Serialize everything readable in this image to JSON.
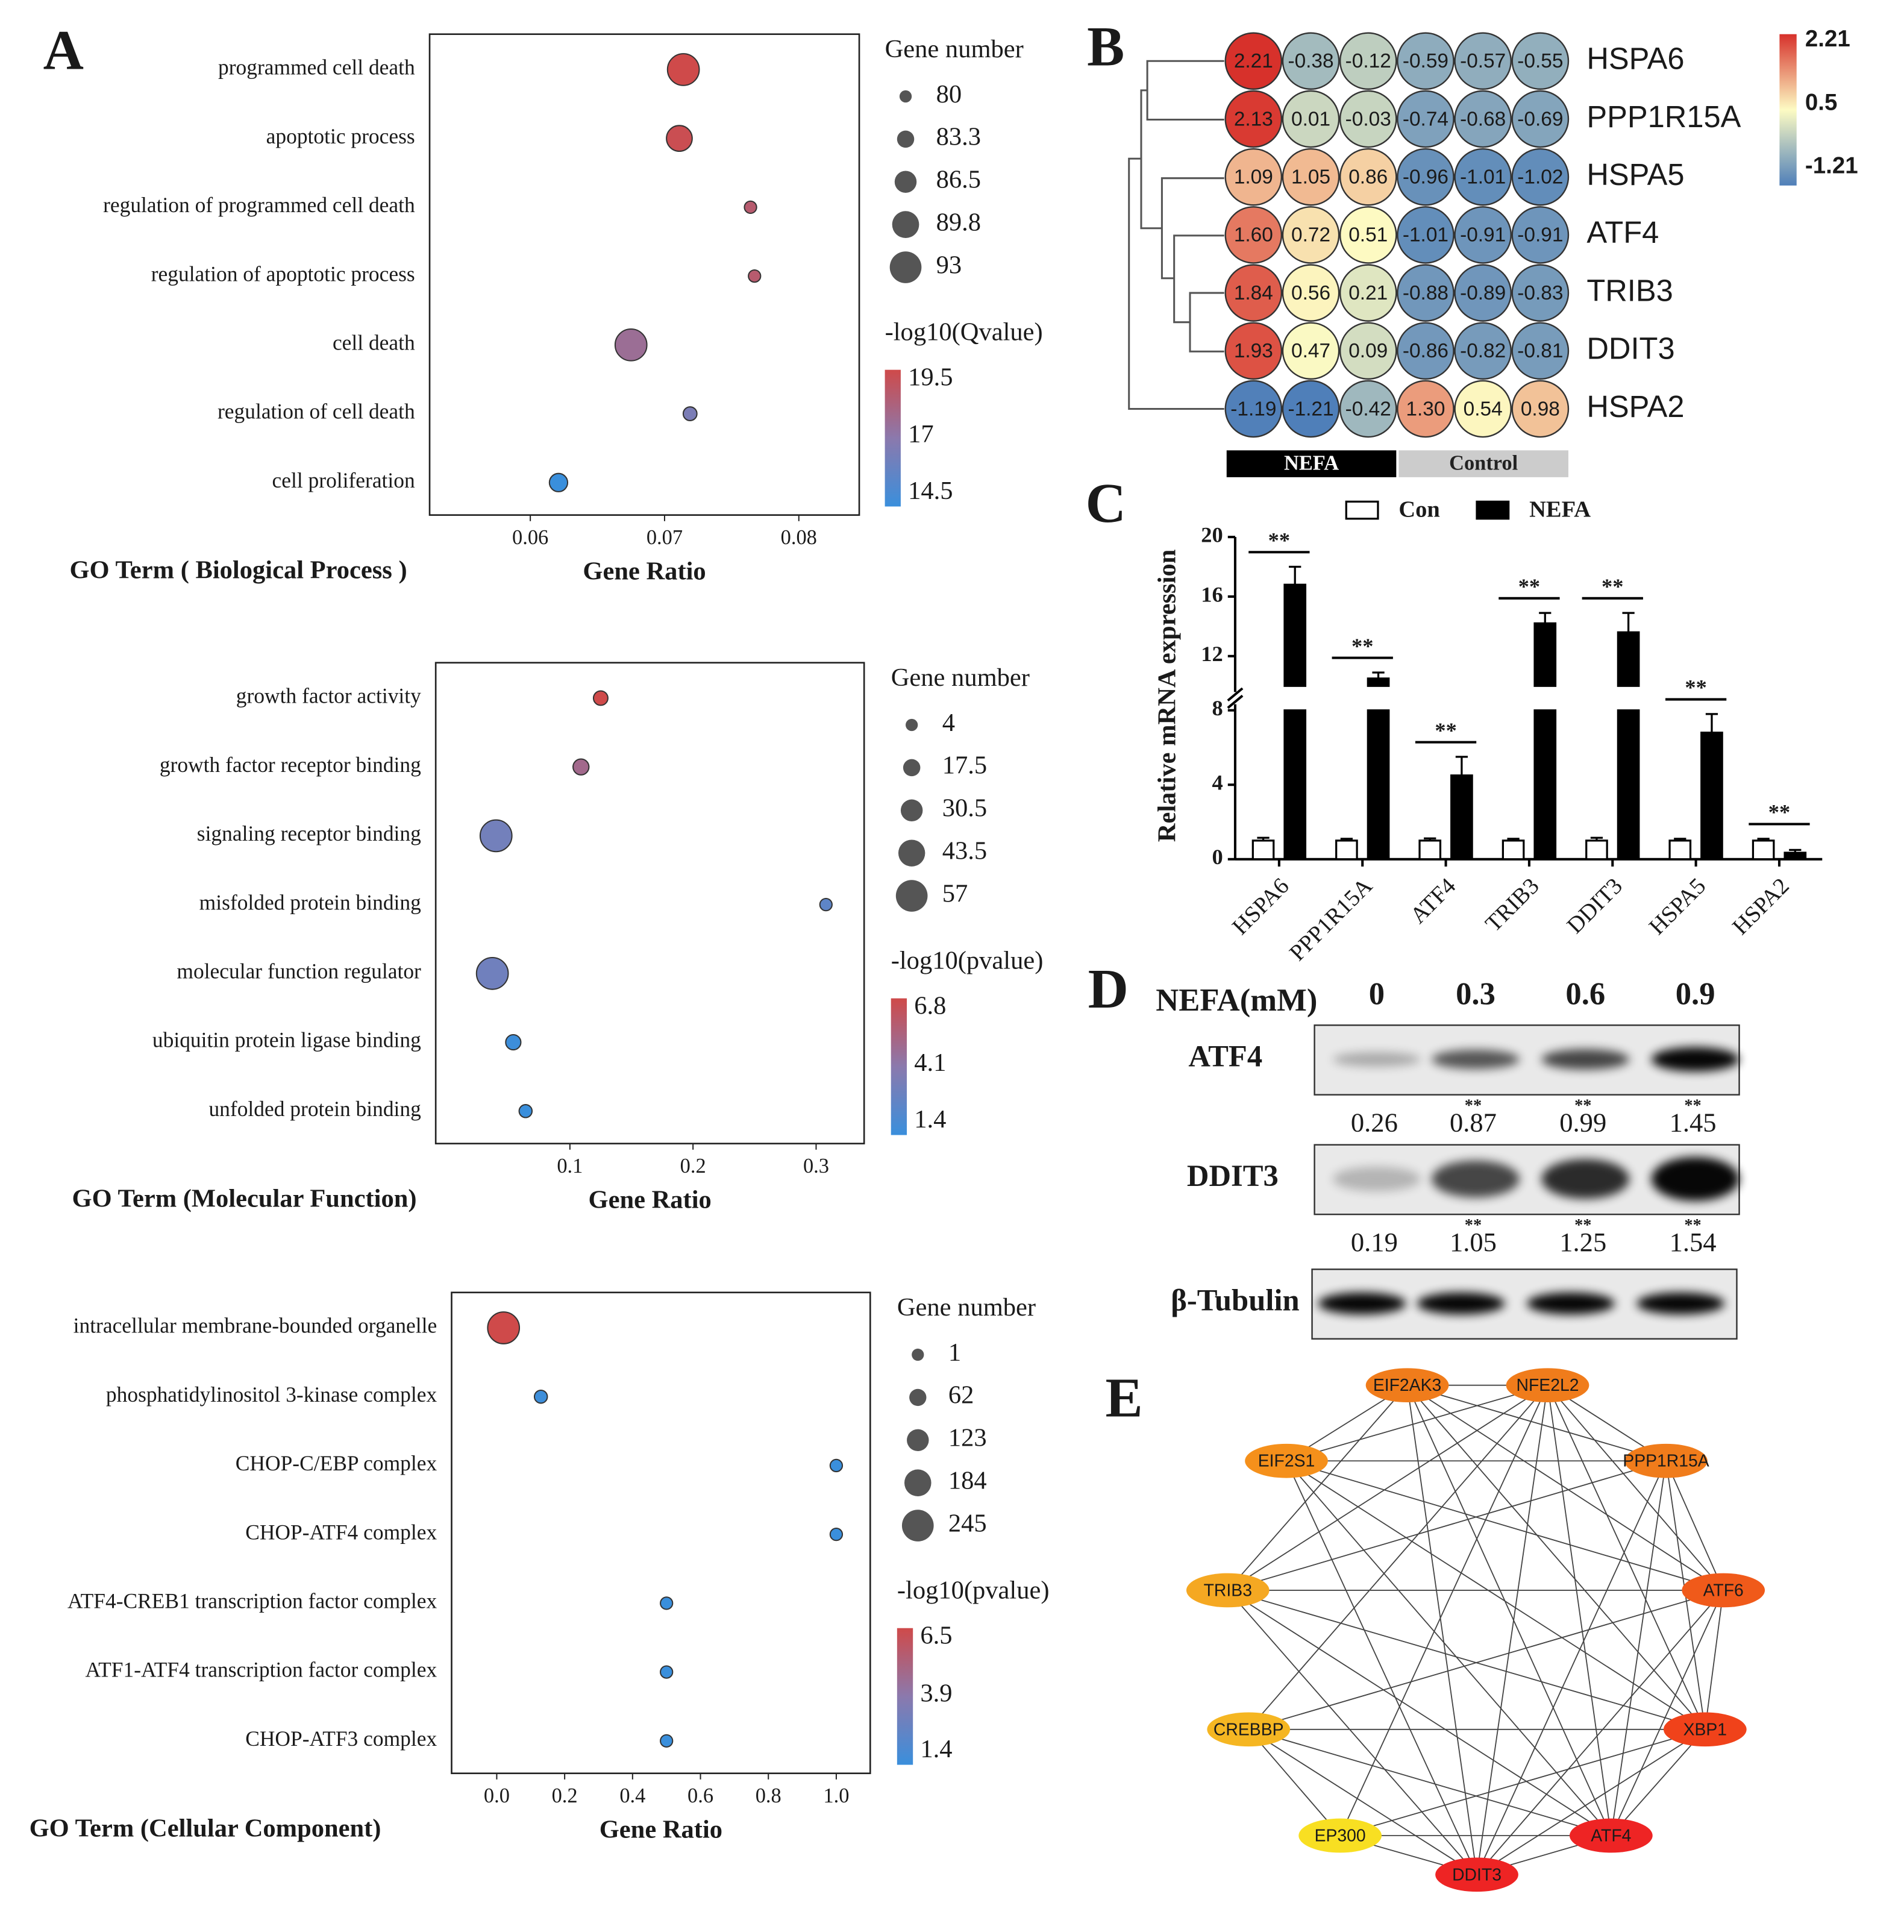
{
  "panel_labels": [
    "A",
    "B",
    "C",
    "D",
    "E"
  ],
  "chart_data": [
    {
      "type": "bubble",
      "title": "GO Term ( Biological Process )",
      "x_label": "Gene Ratio",
      "categories": [
        "programmed cell death",
        "apoptotic process",
        "regulation of programmed cell death",
        "regulation of apoptotic process",
        "cell death",
        "regulation of cell death",
        "cell proliferation"
      ],
      "x": [
        0.0714,
        0.0711,
        0.0764,
        0.0767,
        0.0675,
        0.0719,
        0.0621
      ],
      "size": [
        93,
        89,
        80,
        80,
        93,
        81,
        84
      ],
      "color_values": [
        19.5,
        19.3,
        18.6,
        18.6,
        17.6,
        16.5,
        14.5
      ],
      "xlim": [
        0.0525,
        0.0845
      ],
      "xticks": [
        0.06,
        0.07,
        0.08
      ],
      "size_label": "Gene number",
      "size_legend": [
        80,
        83.3,
        86.5,
        89.8,
        93
      ],
      "color_label": "-log10(Qvalue)",
      "color_ticks": [
        19.5,
        17,
        14.5
      ],
      "colormap": [
        "#3a8fdc",
        "#8b79ad",
        "#cf4a4a"
      ]
    },
    {
      "type": "bubble",
      "title": "GO Term (Molecular Function)",
      "x_label": "Gene Ratio",
      "categories": [
        "growth factor activity",
        "growth factor receptor binding",
        "signaling receptor binding",
        "misfolded protein binding",
        "molecular function regulator",
        "ubiquitin protein ligase binding",
        "unfolded protein binding"
      ],
      "x": [
        0.125,
        0.109,
        0.04,
        0.308,
        0.037,
        0.054,
        0.064
      ],
      "size": [
        10,
        14,
        57,
        4,
        57,
        12,
        6
      ],
      "color_values": [
        6.8,
        5.0,
        3.3,
        2.6,
        3.2,
        1.5,
        1.4
      ],
      "xlim": [
        -0.009,
        0.339
      ],
      "xticks": [
        0.1,
        0.2,
        0.3
      ],
      "size_label": "Gene number",
      "size_legend": [
        4,
        17.5,
        30.5,
        43.5,
        57
      ],
      "color_label": "-log10(pvalue)",
      "color_ticks": [
        6.8,
        4.1,
        1.4
      ],
      "colormap": [
        "#3a8fdc",
        "#8b79ad",
        "#cf4a4a"
      ]
    },
    {
      "type": "bubble",
      "title": "GO Term (Cellular Component)",
      "x_label": "Gene Ratio",
      "categories": [
        "intracellular membrane-bounded organelle",
        "phosphatidylinositol 3-kinase complex",
        "CHOP-C/EBP complex",
        "CHOP-ATF4 complex",
        "ATF4-CREB1 transcription factor complex",
        "ATF1-ATF4 transcription factor complex",
        "CHOP-ATF3 complex"
      ],
      "x": [
        0.02,
        0.13,
        1,
        1,
        0.5,
        0.5,
        0.5
      ],
      "size": [
        245,
        10,
        1,
        1,
        1,
        1,
        1
      ],
      "color_values": [
        6.5,
        1.5,
        1.4,
        1.4,
        1.4,
        1.4,
        1.4
      ],
      "xlim": [
        -0.133,
        1.1
      ],
      "xticks": [
        {
          "value": 0,
          "label": "0.0"
        },
        0.2,
        0.4,
        0.6,
        0.8,
        {
          "value": 1,
          "label": "1.0"
        }
      ],
      "size_label": "Gene number",
      "size_legend": [
        1,
        62,
        123,
        184,
        245
      ],
      "color_label": "-log10(pvalue)",
      "color_ticks": [
        6.5,
        3.9,
        1.4
      ],
      "colormap": [
        "#3a8fdc",
        "#8b79ad",
        "#cf4a4a"
      ]
    },
    {
      "type": "heatmap",
      "rows": [
        "HSPA6",
        "PPP1R15A",
        "HSPA5",
        "ATF4",
        "TRIB3",
        "DDIT3",
        "HSPA2"
      ],
      "groups": [
        "NEFA",
        "Control"
      ],
      "group_colors": [
        "#000000",
        "#cccccc"
      ],
      "values": [
        [
          2.21,
          -0.38,
          -0.12,
          -0.59,
          -0.57,
          -0.55
        ],
        [
          2.13,
          0.01,
          -0.03,
          -0.74,
          -0.68,
          -0.69
        ],
        [
          1.09,
          1.05,
          0.86,
          -0.96,
          -1.01,
          -1.02
        ],
        [
          1.6,
          0.72,
          0.51,
          -1.01,
          -0.91,
          -0.91
        ],
        [
          1.84,
          0.56,
          0.21,
          -0.88,
          -0.89,
          -0.83
        ],
        [
          1.93,
          0.47,
          0.09,
          -0.86,
          -0.82,
          -0.81
        ],
        [
          -1.19,
          -1.21,
          -0.42,
          1.3,
          0.54,
          0.98
        ]
      ],
      "value_labels": [
        [
          "2.21",
          "-0.38",
          "-0.12",
          "-0.59",
          "-0.57",
          "-0.55"
        ],
        [
          "2.13",
          "0.01",
          "-0.03",
          "-0.74",
          "-0.68",
          "-0.69"
        ],
        [
          "1.09",
          "1.05",
          "0.86",
          "-0.96",
          "-1.01",
          "-1.02"
        ],
        [
          "1.60",
          "0.72",
          "0.51",
          "-1.01",
          "-0.91",
          "-0.91"
        ],
        [
          "1.84",
          "0.56",
          "0.21",
          "-0.88",
          "-0.89",
          "-0.83"
        ],
        [
          "1.93",
          "0.47",
          "0.09",
          "-0.86",
          "-0.82",
          "-0.81"
        ],
        [
          "-1.19",
          "-1.21",
          "-0.42",
          "1.30",
          "0.54",
          "0.98"
        ]
      ],
      "color_ticks": [
        2.21,
        0.5,
        -1.21
      ],
      "colormap": [
        "#4f7fb9",
        "#fdfbc3",
        "#d7312b"
      ]
    },
    {
      "type": "bar",
      "y_label": "Relative mRNA expression",
      "categories": [
        "HSPA6",
        "PPP1R15A",
        "ATF4",
        "TRIB3",
        "DDIT3",
        "HSPA5",
        "HSPA2"
      ],
      "series": [
        {
          "name": "Con",
          "color": "#ffffff",
          "values": [
            1.0,
            1.0,
            1.0,
            1.0,
            1.0,
            1.0,
            1.0
          ],
          "errors": [
            0.15,
            0.1,
            0.12,
            0.1,
            0.15,
            0.1,
            0.1
          ]
        },
        {
          "name": "NEFA",
          "color": "#000000",
          "values": [
            16.8,
            10.5,
            4.5,
            14.2,
            13.6,
            6.8,
            0.35
          ],
          "errors": [
            1.2,
            0.4,
            1.0,
            0.7,
            1.3,
            1.0,
            0.15
          ]
        }
      ],
      "significance": [
        "**",
        "**",
        "**",
        "**",
        "**",
        "**",
        "**"
      ],
      "ylim": [
        0,
        20
      ],
      "yticks": [
        0,
        4,
        8,
        12,
        16,
        20
      ],
      "ybreak": [
        8,
        10
      ]
    }
  ],
  "blot": {
    "dose_label": "NEFA(mM)",
    "doses": [
      0,
      0.3,
      0.6,
      0.9
    ],
    "proteins": [
      {
        "name": "ATF4",
        "values": [
          0.26,
          0.87,
          0.99,
          1.45
        ],
        "marks": [
          null,
          "**",
          "**",
          "**"
        ]
      },
      {
        "name": "DDIT3",
        "values": [
          0.19,
          1.05,
          1.25,
          1.54
        ],
        "marks": [
          null,
          "**",
          "**",
          "**"
        ]
      },
      {
        "name": "β-Tubulin"
      }
    ]
  },
  "network": {
    "nodes": [
      {
        "label": "EIF2AK3",
        "color": "#f07c1b"
      },
      {
        "label": "NFE2L2",
        "color": "#f07c1b"
      },
      {
        "label": "PPP1R15A",
        "color": "#f07c1b"
      },
      {
        "label": "ATF6",
        "color": "#f05a1a"
      },
      {
        "label": "XBP1",
        "color": "#f0421a"
      },
      {
        "label": "ATF4",
        "color": "#ee2424"
      },
      {
        "label": "DDIT3",
        "color": "#ee2424"
      },
      {
        "label": "EP300",
        "color": "#f8df22"
      },
      {
        "label": "CREBBP",
        "color": "#f5b622"
      },
      {
        "label": "TRIB3",
        "color": "#f5a822"
      },
      {
        "label": "EIF2S1",
        "color": "#f5901b"
      }
    ],
    "edges": [
      [
        "DDIT3",
        "EIF2AK3"
      ],
      [
        "DDIT3",
        "NFE2L2"
      ],
      [
        "DDIT3",
        "PPP1R15A"
      ],
      [
        "DDIT3",
        "ATF6"
      ],
      [
        "DDIT3",
        "XBP1"
      ],
      [
        "DDIT3",
        "ATF4"
      ],
      [
        "DDIT3",
        "EP300"
      ],
      [
        "DDIT3",
        "CREBBP"
      ],
      [
        "DDIT3",
        "TRIB3"
      ],
      [
        "DDIT3",
        "EIF2S1"
      ],
      [
        "ATF4",
        "EIF2AK3"
      ],
      [
        "ATF4",
        "NFE2L2"
      ],
      [
        "ATF4",
        "PPP1R15A"
      ],
      [
        "ATF4",
        "ATF6"
      ],
      [
        "ATF4",
        "XBP1"
      ],
      [
        "ATF4",
        "EP300"
      ],
      [
        "ATF4",
        "CREBBP"
      ],
      [
        "ATF4",
        "TRIB3"
      ],
      [
        "ATF4",
        "EIF2S1"
      ],
      [
        "EIF2AK3",
        "NFE2L2"
      ],
      [
        "EIF2AK3",
        "EIF2S1"
      ],
      [
        "EIF2AK3",
        "PPP1R15A"
      ],
      [
        "EIF2AK3",
        "ATF6"
      ],
      [
        "EIF2AK3",
        "XBP1"
      ],
      [
        "EIF2AK3",
        "TRIB3"
      ],
      [
        "NFE2L2",
        "EIF2S1"
      ],
      [
        "NFE2L2",
        "PPP1R15A"
      ],
      [
        "NFE2L2",
        "ATF6"
      ],
      [
        "NFE2L2",
        "XBP1"
      ],
      [
        "NFE2L2",
        "CREBBP"
      ],
      [
        "NFE2L2",
        "EP300"
      ],
      [
        "NFE2L2",
        "TRIB3"
      ],
      [
        "EIF2S1",
        "PPP1R15A"
      ],
      [
        "EIF2S1",
        "ATF6"
      ],
      [
        "EIF2S1",
        "XBP1"
      ],
      [
        "PPP1R15A",
        "ATF6"
      ],
      [
        "PPP1R15A",
        "XBP1"
      ],
      [
        "PPP1R15A",
        "TRIB3"
      ],
      [
        "TRIB3",
        "ATF6"
      ],
      [
        "TRIB3",
        "XBP1"
      ],
      [
        "ATF6",
        "XBP1"
      ],
      [
        "ATF6",
        "CREBBP"
      ],
      [
        "CREBBP",
        "EP300"
      ],
      [
        "CREBBP",
        "XBP1"
      ],
      [
        "EP300",
        "XBP1"
      ]
    ]
  }
}
